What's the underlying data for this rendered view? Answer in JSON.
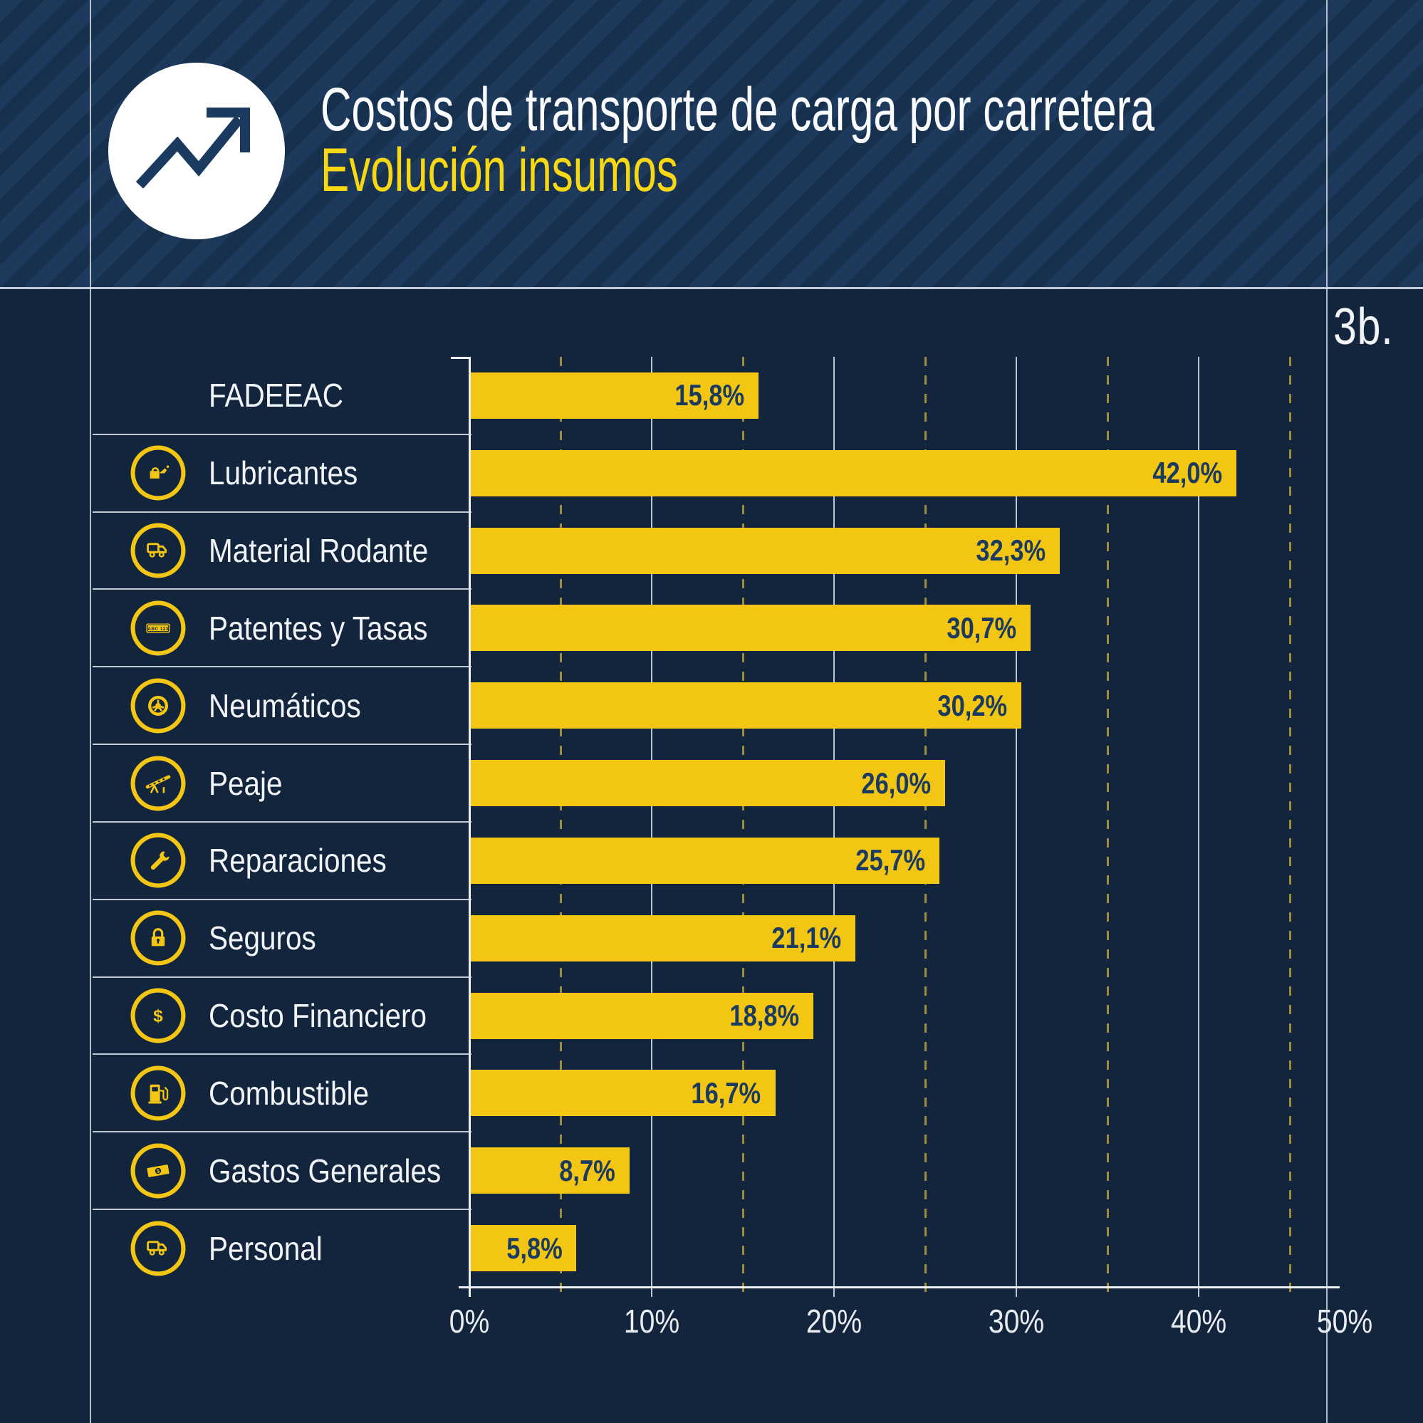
{
  "header": {
    "title": "Costos de transporte de carga por carretera",
    "subtitle": "Evolución insumos",
    "icon": "trend-up-icon"
  },
  "figure_label": "3b.",
  "icon_texts": {
    "plate_text": "ABC 123",
    "currency": "$"
  },
  "rows": [
    {
      "label": "FADEEAC",
      "icon": null,
      "value": 15.8,
      "value_label": "15,8%"
    },
    {
      "label": "Lubricantes",
      "icon": "oil-can",
      "value": 42.0,
      "value_label": "42,0%"
    },
    {
      "label": "Material Rodante",
      "icon": "truck",
      "value": 32.3,
      "value_label": "32,3%"
    },
    {
      "label": "Patentes y Tasas",
      "icon": "license-plate",
      "value": 30.7,
      "value_label": "30,7%"
    },
    {
      "label": "Neumáticos",
      "icon": "tire",
      "value": 30.2,
      "value_label": "30,2%"
    },
    {
      "label": "Peaje",
      "icon": "toll-barrier",
      "value": 26.0,
      "value_label": "26,0%"
    },
    {
      "label": "Reparaciones",
      "icon": "wrench",
      "value": 25.7,
      "value_label": "25,7%"
    },
    {
      "label": "Seguros",
      "icon": "padlock",
      "value": 21.1,
      "value_label": "21,1%"
    },
    {
      "label": "Costo Financiero",
      "icon": "dollar",
      "value": 18.8,
      "value_label": "18,8%"
    },
    {
      "label": "Combustible",
      "icon": "fuel-pump",
      "value": 16.7,
      "value_label": "16,7%"
    },
    {
      "label": "Gastos Generales",
      "icon": "banknote",
      "value": 8.7,
      "value_label": "8,7%"
    },
    {
      "label": "Personal",
      "icon": "truck",
      "value": 5.8,
      "value_label": "5,8%"
    }
  ],
  "x_axis": {
    "ticks": [
      {
        "pct": 0,
        "label": "0%"
      },
      {
        "pct": 5,
        "label": ""
      },
      {
        "pct": 10,
        "label": "10%"
      },
      {
        "pct": 15,
        "label": ""
      },
      {
        "pct": 20,
        "label": "20%"
      },
      {
        "pct": 25,
        "label": ""
      },
      {
        "pct": 30,
        "label": "30%"
      },
      {
        "pct": 35,
        "label": ""
      },
      {
        "pct": 40,
        "label": "40%"
      },
      {
        "pct": 45,
        "label": ""
      },
      {
        "pct": 50,
        "label": "50%"
      }
    ]
  },
  "colors": {
    "background": "#12253D",
    "header_stripe_light": "#1D3A5D",
    "header_stripe_dark": "#17304E",
    "accent_yellow": "#F3C614",
    "subtitle_yellow": "#F7D813",
    "bar_value_navy": "#1B3A5F",
    "grid_solid": "#D5DDE6",
    "grid_dashed_olive": "#A18C3D",
    "text_white": "#F2F5F8"
  },
  "chart_data": {
    "type": "bar",
    "orientation": "horizontal",
    "title": "Costos de transporte de carga por carretera",
    "subtitle": "Evolución insumos",
    "categories": [
      "FADEEAC",
      "Lubricantes",
      "Material Rodante",
      "Patentes y Tasas",
      "Neumáticos",
      "Peaje",
      "Reparaciones",
      "Seguros",
      "Costo Financiero",
      "Combustible",
      "Gastos Generales",
      "Personal"
    ],
    "values": [
      15.8,
      42.0,
      32.3,
      30.7,
      30.2,
      26.0,
      25.7,
      21.1,
      18.8,
      16.7,
      8.7,
      5.8
    ],
    "value_labels": [
      "15,8%",
      "42,0%",
      "32,3%",
      "30,7%",
      "30,2%",
      "26,0%",
      "25,7%",
      "21,1%",
      "18,8%",
      "16,7%",
      "8,7%",
      "5,8%"
    ],
    "xlabel": "",
    "ylabel": "",
    "xlim": [
      0,
      50
    ],
    "xticks_labeled": [
      "0%",
      "10%",
      "20%",
      "30%",
      "40%",
      "50%"
    ],
    "grid": "vertical: solid lines every 10%, dashed lines every 5% offset",
    "legend": "none",
    "bar_color": "#F3C614",
    "figure_number": "3b."
  }
}
